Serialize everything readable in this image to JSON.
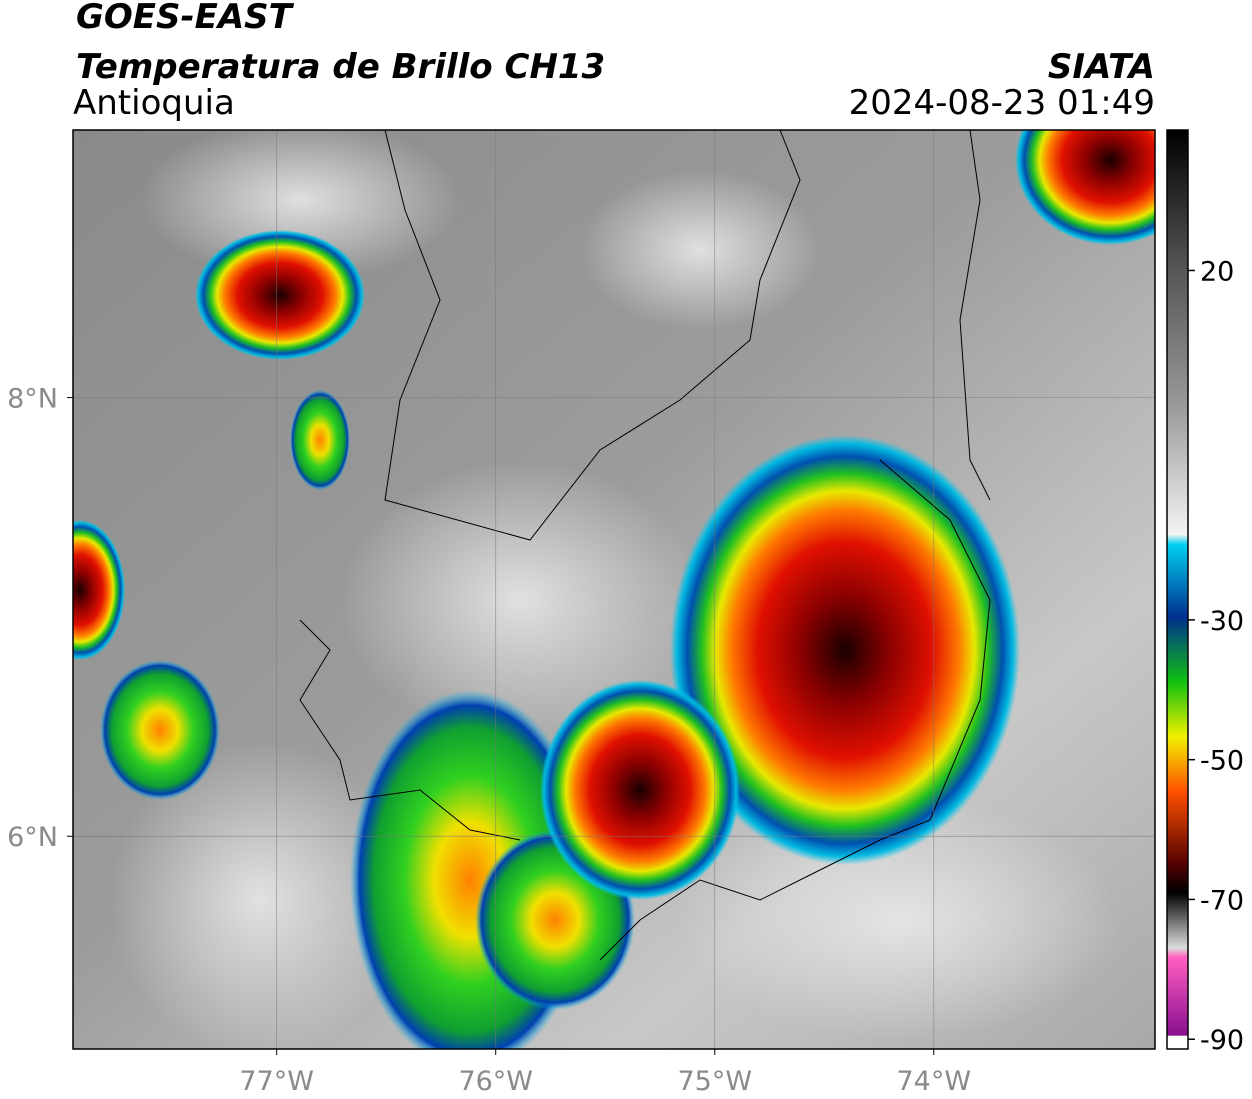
{
  "header": {
    "title": "GOES-EAST",
    "subtitle": "Temperatura de Brillo CH13",
    "region": "Antioquia",
    "source": "SIATA",
    "timestamp": "2024-08-23 01:49"
  },
  "map": {
    "xlim": [
      -77.93,
      -72.99
    ],
    "ylim": [
      5.03,
      9.22
    ],
    "xticks": [
      {
        "value": -77,
        "label": "77°W"
      },
      {
        "value": -76,
        "label": "76°W"
      },
      {
        "value": -75,
        "label": "75°W"
      },
      {
        "value": -74,
        "label": "74°W"
      }
    ],
    "yticks": [
      {
        "value": 8,
        "label": "8°N"
      },
      {
        "value": 6,
        "label": "6°N"
      }
    ],
    "grid": true
  },
  "colorbar": {
    "lim": [
      -91.4,
      40.1
    ],
    "ticks": [
      20,
      -30,
      -50,
      -70,
      -90
    ]
  }
}
